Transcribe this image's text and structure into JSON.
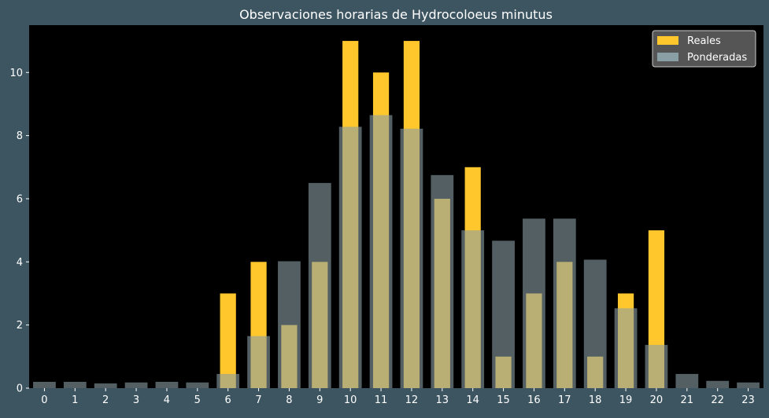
{
  "chart_data": {
    "type": "bar",
    "title": "Observaciones horarias de Hydrocoloeus minutus",
    "xlabel": "",
    "ylabel": "",
    "categories": [
      "0",
      "1",
      "2",
      "3",
      "4",
      "5",
      "6",
      "7",
      "8",
      "9",
      "10",
      "11",
      "12",
      "13",
      "14",
      "15",
      "16",
      "17",
      "18",
      "19",
      "20",
      "21",
      "22",
      "23"
    ],
    "series": [
      {
        "name": "Reales",
        "color": "#ffc72c",
        "values": [
          0,
          0,
          0,
          0,
          0,
          0,
          3,
          4,
          2,
          4,
          11,
          10,
          11,
          6,
          7,
          1,
          3,
          4,
          1,
          3,
          5,
          0,
          0,
          0
        ]
      },
      {
        "name": "Ponderadas",
        "color": "#8a9ea5",
        "values": [
          0.2,
          0.2,
          0.15,
          0.18,
          0.2,
          0.18,
          0.45,
          1.65,
          4.02,
          6.5,
          8.28,
          8.65,
          8.22,
          6.75,
          5.0,
          4.67,
          5.37,
          5.37,
          4.07,
          2.53,
          1.37,
          0.45,
          0.23,
          0.18
        ]
      }
    ],
    "ylim": [
      0,
      11.5
    ],
    "yticks": [
      0,
      2,
      4,
      6,
      8,
      10
    ],
    "grid": false,
    "legend": "top-right",
    "colors": {
      "figure_background": "#3d5561",
      "plot_background": "#000000",
      "text": "#ffffff"
    }
  }
}
